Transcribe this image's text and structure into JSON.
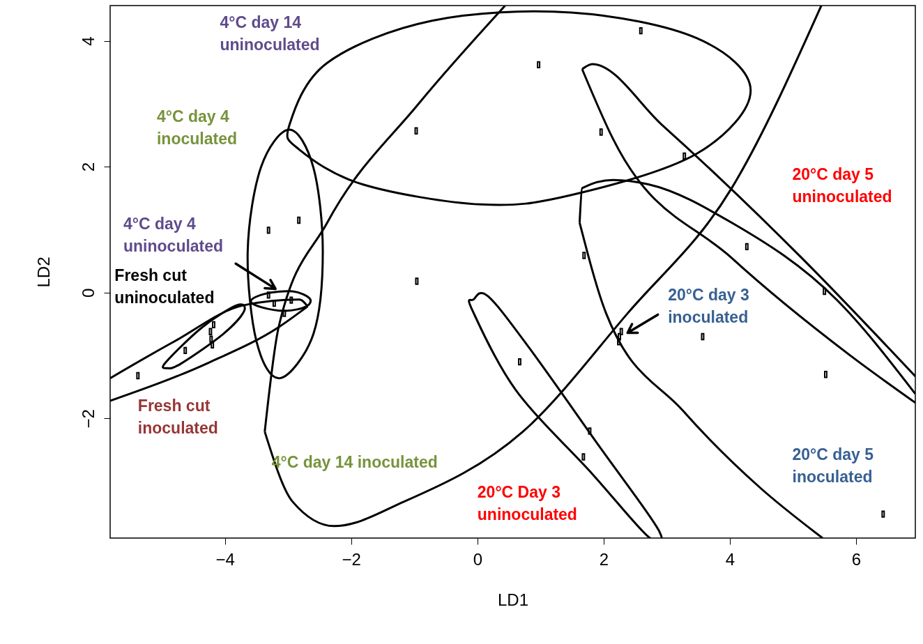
{
  "chart_data": {
    "type": "scatter",
    "xlabel": "LD1",
    "ylabel": "LD2",
    "marker": "square",
    "xlim": [
      -5.82,
      6.94
    ],
    "ylim": [
      -3.9,
      4.56
    ],
    "xticks": [
      -4,
      -2,
      0,
      2,
      4,
      6
    ],
    "yticks": [
      -2,
      0,
      2,
      4
    ],
    "x": [
      -5.38,
      -4.63,
      -4.23,
      -4.22,
      -4.2,
      -4.18,
      -3.31,
      -2.83,
      -3.31,
      -3.22,
      -3.06,
      -2.95,
      -0.97,
      -0.96,
      0.97,
      1.96,
      2.59,
      3.28,
      1.69,
      4.27,
      5.5,
      3.57,
      5.52,
      6.43,
      0.67,
      1.78,
      1.68,
      2.24,
      2.25,
      2.28
    ],
    "series": [
      {
        "type": "line",
        "marker": "none",
        "color": "#000000",
        "x": [
          -5.82,
          -4.81,
          -3.7,
          -2.82,
          -2.69
        ],
        "values": [
          -1.36,
          -0.78,
          -0.2,
          -0.11,
          -0.22
        ]
      },
      {
        "type": "line",
        "marker": "none",
        "color": "#000000",
        "x": [
          -5.82,
          -4.25,
          -3.15,
          -2.69
        ],
        "values": [
          -1.72,
          -1.11,
          -0.55,
          -0.22
        ]
      },
      {
        "type": "line",
        "marker": "none",
        "color": "#000000",
        "x": [
          -3.37,
          -3.15,
          -2.38,
          -0.94,
          0.44
        ],
        "values": [
          -2.21,
          -0.55,
          1.11,
          2.99,
          4.56
        ]
      },
      {
        "type": "line",
        "marker": "none",
        "color": "#000000",
        "x": [
          -3.37,
          -2.93,
          -2.27,
          -1.16,
          0.72,
          2.38,
          4.03,
          5.45
        ],
        "values": [
          -2.21,
          -3.32,
          -3.71,
          -3.32,
          -2.21,
          -0.33,
          1.66,
          4.56
        ]
      },
      {
        "type": "line",
        "marker": "none",
        "color": "#000000",
        "x": [
          1.66,
          1.82,
          2.93,
          5.14,
          6.94
        ],
        "values": [
          3.55,
          3.63,
          2.66,
          0.55,
          -1.33
        ]
      },
      {
        "type": "line",
        "marker": "none",
        "color": "#000000",
        "x": [
          1.66,
          2.15,
          4.03,
          5.91,
          6.94
        ],
        "values": [
          3.55,
          2.44,
          0.55,
          -1.0,
          -1.75
        ]
      },
      {
        "type": "line",
        "marker": "none",
        "color": "#000000",
        "x": [
          1.62,
          1.66,
          2.15,
          2.71,
          4.03,
          5.69,
          6.94
        ],
        "values": [
          1.11,
          1.66,
          1.79,
          1.72,
          1.11,
          -0.11,
          -1.61
        ]
      },
      {
        "type": "line",
        "marker": "none",
        "color": "#000000",
        "x": [
          1.62,
          2.04,
          3.26,
          4.48,
          5.47
        ],
        "values": [
          1.11,
          -0.33,
          -1.88,
          -3.1,
          -3.9
        ]
      },
      {
        "color": "#000000",
        "values": [
          -1.32,
          -0.92,
          -0.62,
          -0.74,
          -0.83,
          -0.51,
          0.99,
          1.15,
          -0.04,
          -0.17,
          -0.33,
          -0.12,
          2.57,
          0.18,
          3.62,
          2.55,
          4.16,
          2.17,
          0.59,
          0.73,
          0.02,
          -0.7,
          -1.3,
          -3.52,
          -1.1,
          -2.2,
          -2.61,
          -0.78,
          -0.7,
          -0.62
        ]
      }
    ],
    "annotations": [
      "4°C day 14\nuninoculated",
      "4°C day 4\ninoculated",
      "4°C day 4\nuninoculated",
      "Fresh cut\nuninoculated",
      "Fresh cut\ninoculated",
      "4°C day 14 inoculated",
      "20°C Day 3\nuninoculated",
      "20°C day 3\ninoculated",
      "20°C day 5\nuninoculated",
      "20°C day 5\ninoculated"
    ]
  }
}
